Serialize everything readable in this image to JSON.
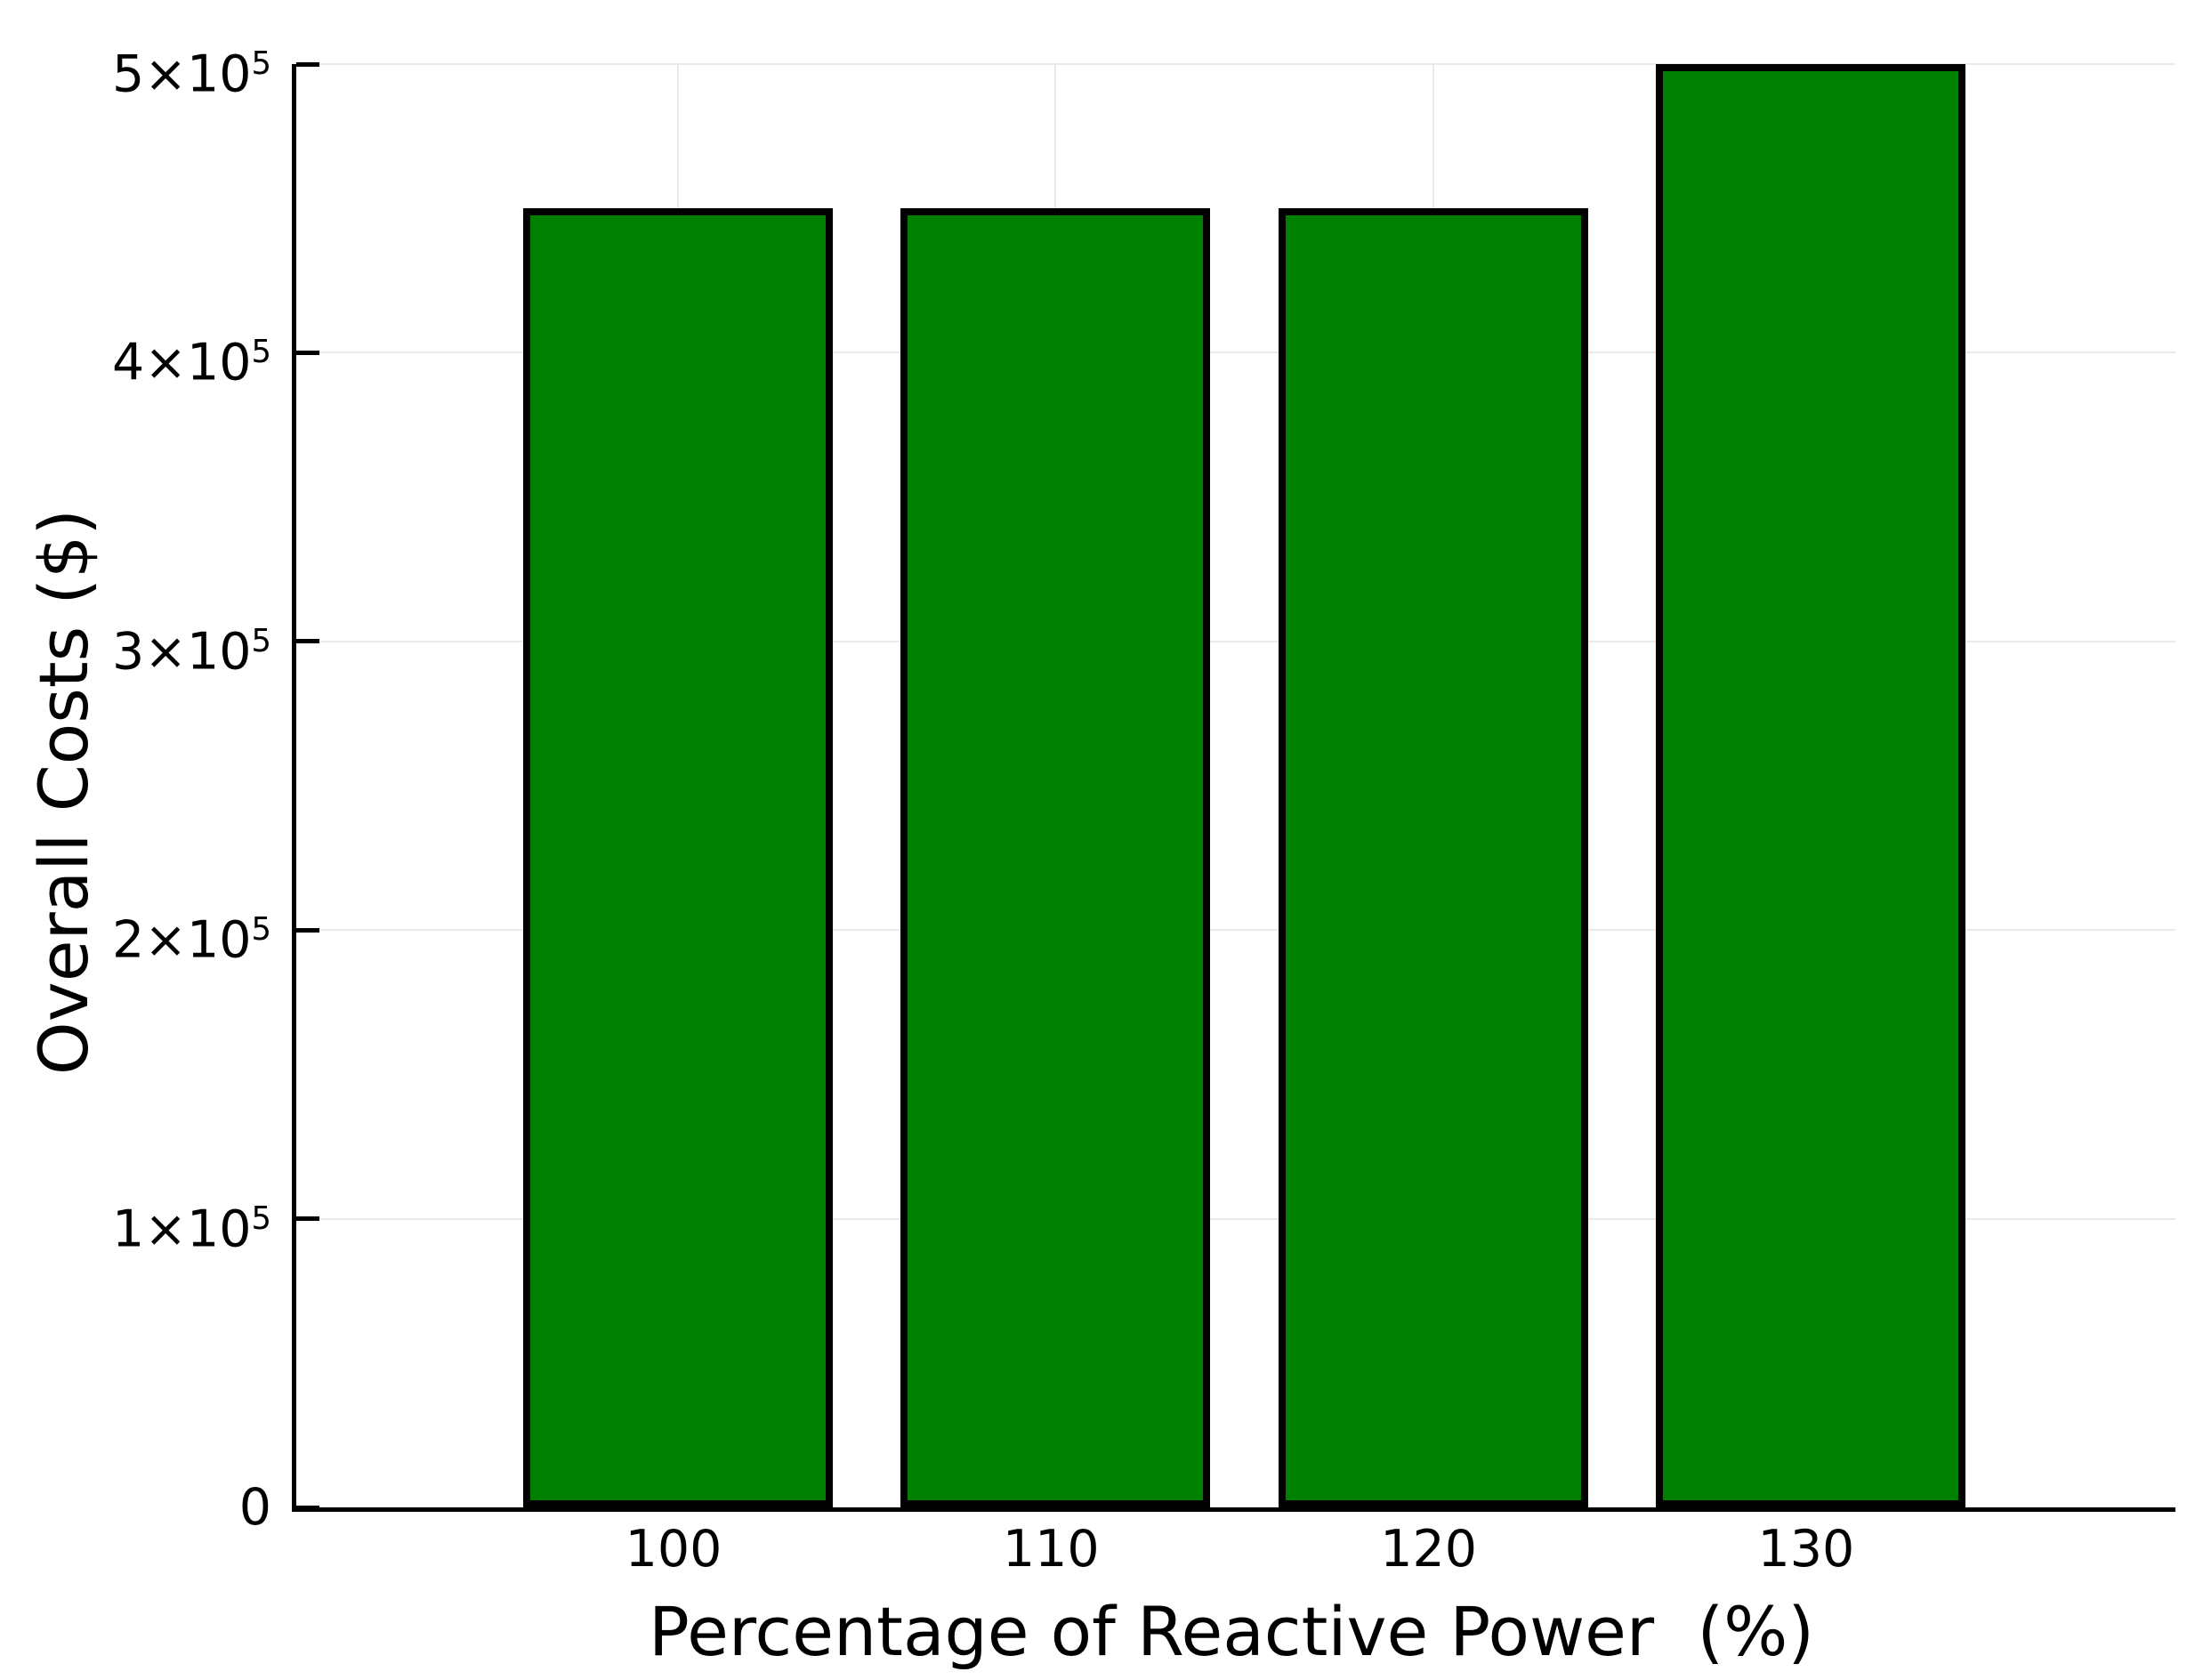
{
  "chart_data": {
    "type": "bar",
    "title": "",
    "xlabel": "Percentage of Reactive Power  (%)",
    "ylabel": "Overall Costs ($)",
    "categories": [
      "100",
      "110",
      "120",
      "130"
    ],
    "values": [
      450000,
      450000,
      450000,
      500000
    ],
    "ylim": [
      0,
      500000
    ],
    "yticks": [
      {
        "value": 0,
        "mantissa": "0",
        "exponent": ""
      },
      {
        "value": 100000,
        "mantissa": "1×10",
        "exponent": "5"
      },
      {
        "value": 200000,
        "mantissa": "2×10",
        "exponent": "5"
      },
      {
        "value": 300000,
        "mantissa": "3×10",
        "exponent": "5"
      },
      {
        "value": 400000,
        "mantissa": "4×10",
        "exponent": "5"
      },
      {
        "value": 500000,
        "mantissa": "5×10",
        "exponent": "5"
      }
    ],
    "grid": true,
    "legend": false,
    "colors": {
      "bar_fill": "#008000",
      "bar_edge": "#000000",
      "gridline": "#eaeaea",
      "axis": "#000000",
      "background": "#ffffff",
      "text": "#000000"
    }
  }
}
